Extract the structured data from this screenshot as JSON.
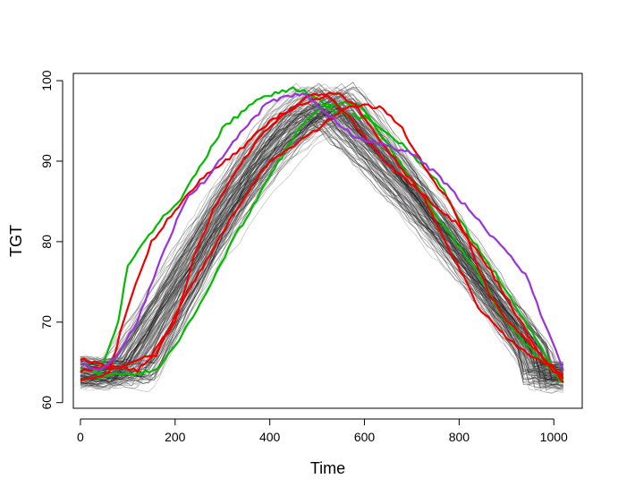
{
  "chart_data": {
    "type": "line",
    "title": "",
    "xlabel": "Time",
    "ylabel": "TGT",
    "xlim": [
      -15,
      1060
    ],
    "ylim": [
      59.3,
      100.9
    ],
    "xticks": [
      0,
      200,
      400,
      600,
      800,
      1000
    ],
    "yticks": [
      60,
      70,
      80,
      90,
      100
    ],
    "grid": false,
    "background_series": {
      "name": "other trajectories",
      "color": "#000000",
      "count": 140,
      "peak_time_range": [
        460,
        590
      ],
      "peak_value_range": [
        95.5,
        99.5
      ]
    },
    "series": [
      {
        "name": "green early",
        "color": "#00bb00",
        "points": [
          [
            0,
            64.5
          ],
          [
            40,
            63.5
          ],
          [
            80,
            70
          ],
          [
            100,
            77
          ],
          [
            160,
            82
          ],
          [
            220,
            86
          ],
          [
            300,
            94
          ],
          [
            380,
            98
          ],
          [
            450,
            99
          ],
          [
            480,
            98.5
          ],
          [
            540,
            96
          ],
          [
            600,
            95.5
          ],
          [
            680,
            92
          ],
          [
            760,
            87
          ],
          [
            830,
            80
          ],
          [
            900,
            74
          ],
          [
            960,
            68
          ],
          [
            1020,
            62.5
          ]
        ]
      },
      {
        "name": "green late",
        "color": "#00bb00",
        "points": [
          [
            0,
            63
          ],
          [
            100,
            63.5
          ],
          [
            160,
            64
          ],
          [
            200,
            67
          ],
          [
            260,
            73
          ],
          [
            320,
            80
          ],
          [
            380,
            86
          ],
          [
            440,
            92
          ],
          [
            480,
            95.5
          ],
          [
            520,
            97
          ],
          [
            560,
            97.5
          ],
          [
            600,
            96.5
          ],
          [
            660,
            91
          ],
          [
            720,
            86
          ],
          [
            780,
            81
          ],
          [
            840,
            76
          ],
          [
            900,
            70
          ],
          [
            960,
            66
          ],
          [
            1020,
            62.5
          ]
        ]
      },
      {
        "name": "red early",
        "color": "#ee0000",
        "points": [
          [
            0,
            63
          ],
          [
            60,
            63.5
          ],
          [
            100,
            72
          ],
          [
            150,
            80
          ],
          [
            200,
            84
          ],
          [
            260,
            88
          ],
          [
            330,
            91
          ],
          [
            400,
            95
          ],
          [
            460,
            97
          ],
          [
            520,
            98
          ],
          [
            560,
            96
          ],
          [
            640,
            90
          ],
          [
            720,
            86
          ],
          [
            800,
            82
          ],
          [
            860,
            77
          ],
          [
            920,
            71
          ],
          [
            970,
            66
          ],
          [
            1020,
            63
          ]
        ]
      },
      {
        "name": "red mid",
        "color": "#ee0000",
        "points": [
          [
            0,
            64
          ],
          [
            80,
            64.5
          ],
          [
            150,
            66
          ],
          [
            200,
            70
          ],
          [
            240,
            78
          ],
          [
            280,
            84
          ],
          [
            330,
            89
          ],
          [
            380,
            93
          ],
          [
            430,
            96
          ],
          [
            480,
            98
          ],
          [
            540,
            98.5
          ],
          [
            580,
            97
          ],
          [
            640,
            92
          ],
          [
            720,
            86
          ],
          [
            780,
            79
          ],
          [
            840,
            72
          ],
          [
            900,
            68
          ],
          [
            960,
            65.5
          ],
          [
            1020,
            63.5
          ]
        ]
      },
      {
        "name": "red late",
        "color": "#ee0000",
        "points": [
          [
            0,
            65.5
          ],
          [
            60,
            64.5
          ],
          [
            120,
            64
          ],
          [
            160,
            66
          ],
          [
            220,
            73
          ],
          [
            280,
            79
          ],
          [
            340,
            85
          ],
          [
            400,
            90
          ],
          [
            450,
            92
          ],
          [
            500,
            94
          ],
          [
            560,
            96.5
          ],
          [
            600,
            97
          ],
          [
            640,
            96.5
          ],
          [
            680,
            94
          ],
          [
            740,
            88
          ],
          [
            780,
            85
          ],
          [
            820,
            80
          ],
          [
            860,
            74
          ],
          [
            900,
            70
          ],
          [
            940,
            68
          ],
          [
            1000,
            64
          ],
          [
            1020,
            62.5
          ]
        ]
      },
      {
        "name": "purple",
        "color": "#9933dd",
        "points": [
          [
            0,
            65
          ],
          [
            40,
            64
          ],
          [
            80,
            66
          ],
          [
            120,
            70
          ],
          [
            170,
            78
          ],
          [
            220,
            85
          ],
          [
            270,
            88
          ],
          [
            330,
            93
          ],
          [
            400,
            97.5
          ],
          [
            470,
            98.5
          ],
          [
            520,
            96
          ],
          [
            580,
            93
          ],
          [
            640,
            92
          ],
          [
            700,
            91
          ],
          [
            760,
            88
          ],
          [
            820,
            84
          ],
          [
            880,
            80
          ],
          [
            940,
            76
          ],
          [
            980,
            70
          ],
          [
            1020,
            64
          ]
        ]
      }
    ]
  }
}
